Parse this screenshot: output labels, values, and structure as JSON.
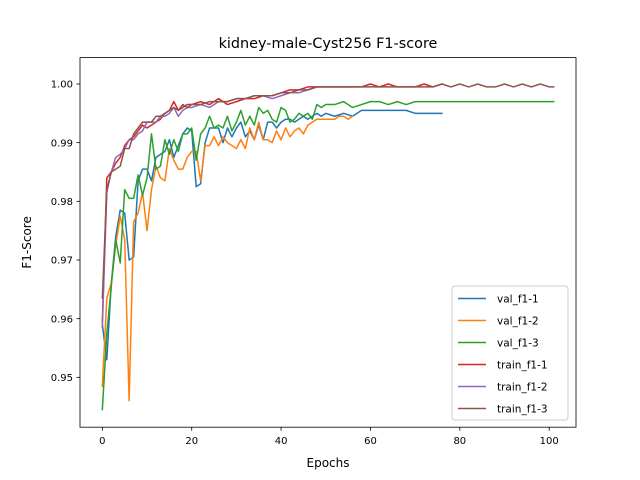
{
  "chart_data": {
    "type": "line",
    "title": "kidney-male-Cyst256 F1-score",
    "xlabel": "Epochs",
    "ylabel": "F1-Score",
    "xlim": [
      -5,
      106
    ],
    "ylim": [
      0.9415,
      1.0045
    ],
    "xticks": [
      0,
      20,
      40,
      60,
      80,
      100
    ],
    "yticks": [
      0.95,
      0.96,
      0.97,
      0.98,
      0.99,
      1.0
    ],
    "ytick_labels": [
      "0.95",
      "0.96",
      "0.97",
      "0.98",
      "0.99",
      "1.00"
    ],
    "grid": false,
    "legend_position": "lower-right",
    "series": [
      {
        "name": "val_f1-1",
        "color": "#1f77b4",
        "x": [
          0,
          1,
          2,
          3,
          4,
          5,
          6,
          7,
          8,
          9,
          10,
          11,
          12,
          13,
          14,
          15,
          16,
          17,
          18,
          19,
          20,
          21,
          22,
          23,
          24,
          25,
          26,
          27,
          28,
          29,
          30,
          31,
          32,
          33,
          34,
          35,
          36,
          37,
          38,
          39,
          40,
          41,
          42,
          43,
          44,
          45,
          46,
          47,
          48,
          49,
          50,
          52,
          54,
          56,
          58,
          60,
          62,
          64,
          66,
          68,
          70,
          72,
          74,
          76
        ],
        "y": [
          0.959,
          0.953,
          0.966,
          0.974,
          0.9785,
          0.978,
          0.97,
          0.9705,
          0.9835,
          0.9855,
          0.9855,
          0.9835,
          0.9875,
          0.988,
          0.9885,
          0.9905,
          0.9875,
          0.9895,
          0.9915,
          0.9925,
          0.992,
          0.9825,
          0.983,
          0.99,
          0.9925,
          0.9925,
          0.9925,
          0.99,
          0.9925,
          0.991,
          0.9925,
          0.9935,
          0.991,
          0.992,
          0.9905,
          0.993,
          0.9905,
          0.9935,
          0.9935,
          0.9925,
          0.9935,
          0.994,
          0.994,
          0.9935,
          0.994,
          0.9945,
          0.994,
          0.9945,
          0.995,
          0.9945,
          0.995,
          0.9945,
          0.995,
          0.9945,
          0.9955,
          0.9955,
          0.9955,
          0.9955,
          0.9955,
          0.9955,
          0.995,
          0.995,
          0.995,
          0.995
        ]
      },
      {
        "name": "val_f1-2",
        "color": "#ff7f0e",
        "x": [
          0,
          1,
          2,
          3,
          4,
          5,
          6,
          7,
          8,
          9,
          10,
          11,
          12,
          13,
          14,
          15,
          16,
          17,
          18,
          19,
          20,
          21,
          22,
          23,
          24,
          25,
          26,
          27,
          28,
          29,
          30,
          31,
          32,
          33,
          34,
          35,
          36,
          37,
          38,
          39,
          40,
          41,
          42,
          43,
          44,
          45,
          46,
          47,
          48,
          49,
          50,
          51,
          52,
          53,
          54,
          55,
          56
        ],
        "y": [
          0.9485,
          0.9635,
          0.966,
          0.9725,
          0.9775,
          0.9735,
          0.946,
          0.9765,
          0.978,
          0.9815,
          0.975,
          0.982,
          0.986,
          0.984,
          0.9835,
          0.989,
          0.987,
          0.9855,
          0.9855,
          0.9875,
          0.9885,
          0.9885,
          0.9835,
          0.9895,
          0.9895,
          0.991,
          0.9895,
          0.991,
          0.99,
          0.9895,
          0.989,
          0.9905,
          0.989,
          0.9925,
          0.9905,
          0.9935,
          0.9905,
          0.9905,
          0.99,
          0.992,
          0.9905,
          0.9925,
          0.991,
          0.992,
          0.9925,
          0.9915,
          0.993,
          0.9935,
          0.994,
          0.994,
          0.994,
          0.994,
          0.994,
          0.9945,
          0.9945,
          0.994,
          0.9945
        ]
      },
      {
        "name": "val_f1-3",
        "color": "#2ca02c",
        "x": [
          0,
          1,
          2,
          3,
          4,
          5,
          6,
          7,
          8,
          9,
          10,
          11,
          12,
          13,
          14,
          15,
          16,
          17,
          18,
          19,
          20,
          21,
          22,
          23,
          24,
          25,
          26,
          27,
          28,
          29,
          30,
          31,
          32,
          33,
          34,
          35,
          36,
          37,
          38,
          39,
          40,
          41,
          42,
          43,
          44,
          45,
          46,
          47,
          48,
          49,
          50,
          52,
          54,
          56,
          58,
          60,
          62,
          64,
          66,
          68,
          70,
          72,
          74,
          76,
          80,
          84,
          88,
          92,
          96,
          101
        ],
        "y": [
          0.9445,
          0.9575,
          0.9655,
          0.9735,
          0.9695,
          0.982,
          0.9805,
          0.9805,
          0.9845,
          0.981,
          0.984,
          0.9915,
          0.9855,
          0.986,
          0.9905,
          0.988,
          0.9905,
          0.9885,
          0.9915,
          0.9915,
          0.9925,
          0.987,
          0.9915,
          0.9925,
          0.9945,
          0.9925,
          0.993,
          0.9925,
          0.9945,
          0.992,
          0.9935,
          0.9955,
          0.993,
          0.9945,
          0.993,
          0.996,
          0.995,
          0.9955,
          0.994,
          0.9935,
          0.996,
          0.9955,
          0.9935,
          0.994,
          0.995,
          0.9945,
          0.995,
          0.994,
          0.9965,
          0.996,
          0.9965,
          0.9965,
          0.997,
          0.996,
          0.9965,
          0.997,
          0.997,
          0.9965,
          0.997,
          0.9965,
          0.997,
          0.997,
          0.997,
          0.997,
          0.997,
          0.997,
          0.997,
          0.997,
          0.997,
          0.997
        ]
      },
      {
        "name": "train_f1-1",
        "color": "#d62728",
        "x": [
          0,
          1,
          2,
          3,
          4,
          5,
          6,
          7,
          8,
          9,
          10,
          11,
          12,
          13,
          14,
          15,
          16,
          17,
          18,
          19,
          20,
          22,
          24,
          26,
          28,
          30,
          32,
          34,
          36,
          38,
          40,
          42,
          44,
          46,
          48,
          50,
          52,
          54,
          56,
          58,
          60,
          62,
          64,
          66,
          68,
          70,
          72,
          74,
          76
        ],
        "y": [
          0.9595,
          0.984,
          0.985,
          0.9865,
          0.9875,
          0.9895,
          0.9905,
          0.991,
          0.992,
          0.993,
          0.9925,
          0.993,
          0.9935,
          0.994,
          0.995,
          0.9955,
          0.997,
          0.9955,
          0.996,
          0.9965,
          0.9965,
          0.997,
          0.9965,
          0.9975,
          0.9965,
          0.997,
          0.9975,
          0.9975,
          0.998,
          0.998,
          0.9985,
          0.999,
          0.999,
          0.9995,
          0.9995,
          0.9995,
          0.9995,
          0.9995,
          0.9995,
          0.9995,
          1.0,
          0.9995,
          1.0,
          0.9995,
          0.9995,
          0.9995,
          1.0,
          0.9995,
          1.0
        ]
      },
      {
        "name": "train_f1-2",
        "color": "#9467bd",
        "x": [
          0,
          1,
          2,
          3,
          4,
          5,
          6,
          7,
          8,
          9,
          10,
          11,
          12,
          13,
          14,
          15,
          16,
          17,
          18,
          19,
          20,
          22,
          24,
          26,
          28,
          30,
          32,
          34,
          36,
          38,
          40,
          42,
          44,
          46,
          48,
          50,
          52,
          54,
          56
        ],
        "y": [
          0.9585,
          0.9815,
          0.985,
          0.9875,
          0.988,
          0.989,
          0.9905,
          0.9905,
          0.9915,
          0.992,
          0.9935,
          0.9935,
          0.9935,
          0.9945,
          0.9945,
          0.995,
          0.996,
          0.9945,
          0.9955,
          0.996,
          0.996,
          0.9965,
          0.996,
          0.997,
          0.997,
          0.9975,
          0.9975,
          0.998,
          0.998,
          0.9975,
          0.998,
          0.9985,
          0.9985,
          0.999,
          0.9995,
          0.9995,
          0.9995,
          0.9995,
          0.9995
        ]
      },
      {
        "name": "train_f1-3",
        "color": "#8c564b",
        "x": [
          0,
          1,
          2,
          3,
          4,
          5,
          6,
          7,
          8,
          9,
          10,
          11,
          12,
          13,
          14,
          15,
          16,
          17,
          18,
          19,
          20,
          22,
          24,
          26,
          28,
          30,
          32,
          34,
          36,
          38,
          40,
          42,
          44,
          46,
          48,
          50,
          52,
          54,
          56,
          58,
          60,
          62,
          64,
          66,
          68,
          70,
          72,
          74,
          76,
          78,
          80,
          82,
          84,
          86,
          88,
          90,
          92,
          94,
          96,
          98,
          100,
          101
        ],
        "y": [
          0.9635,
          0.982,
          0.985,
          0.9855,
          0.986,
          0.989,
          0.989,
          0.9915,
          0.9925,
          0.9935,
          0.9935,
          0.9935,
          0.9945,
          0.9945,
          0.995,
          0.9955,
          0.996,
          0.9955,
          0.9965,
          0.996,
          0.9965,
          0.9965,
          0.997,
          0.997,
          0.997,
          0.9975,
          0.9975,
          0.998,
          0.998,
          0.998,
          0.9985,
          0.9985,
          0.999,
          0.999,
          0.9995,
          0.9995,
          0.9995,
          0.9995,
          0.9995,
          0.9995,
          0.9995,
          0.9995,
          0.9995,
          0.9995,
          0.9995,
          0.9995,
          0.9995,
          0.9995,
          1.0,
          0.9995,
          1.0,
          0.9995,
          1.0,
          0.9995,
          0.9995,
          1.0,
          0.9995,
          1.0,
          0.9995,
          1.0,
          0.9995,
          0.9995
        ]
      }
    ]
  }
}
